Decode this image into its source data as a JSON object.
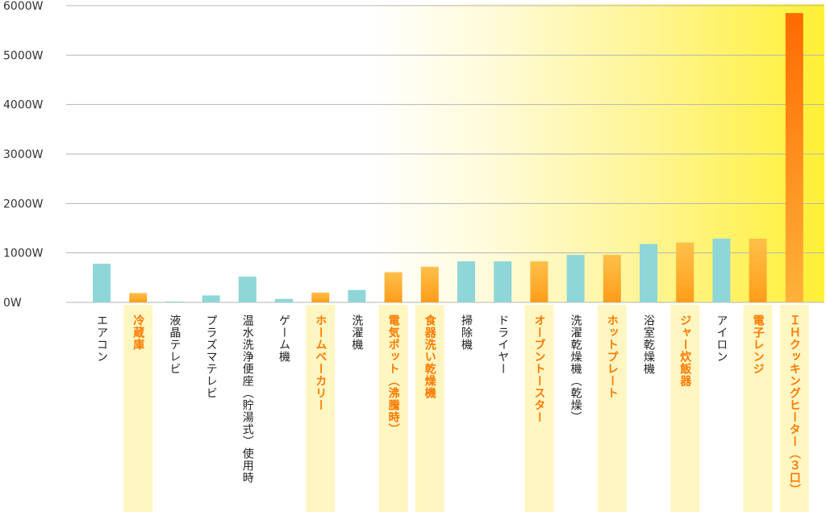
{
  "chart_data": {
    "type": "bar",
    "yunit": "W",
    "ylim": [
      0,
      6000
    ],
    "ytick_labels": [
      "0W",
      "1000W",
      "2000W",
      "3000W",
      "4000W",
      "5000W",
      "6000W"
    ],
    "grid": true,
    "categories": [
      "エアコン",
      "冷蔵庫",
      "液晶テレビ",
      "プラズマテレビ",
      "温水洗浄便座（貯湯式）使用時",
      "ゲーム機",
      "ホームベーカリー",
      "洗濯機",
      "電気ポット（沸騰時）",
      "食器洗い乾燥機",
      "掃除機",
      "ドライヤー",
      "オーブントースター",
      "洗濯乾燥機（乾燥）",
      "ホットプレート",
      "浴室乾燥機",
      "ジャー炊飯器",
      "アイロン",
      "電子レンジ",
      "ＩＨクッキングヒーター（３口）"
    ],
    "values": [
      780,
      190,
      10,
      140,
      520,
      70,
      200,
      250,
      610,
      720,
      830,
      830,
      830,
      960,
      960,
      1180,
      1210,
      1290,
      1290,
      5850
    ],
    "highlighted": [
      false,
      true,
      false,
      false,
      false,
      false,
      true,
      false,
      true,
      true,
      false,
      false,
      true,
      false,
      true,
      false,
      true,
      false,
      true,
      true
    ],
    "colors": {
      "normal_bar": "#8fd6d8",
      "highlight_bar": "#ff9d1a",
      "highlight_bar_top": "#ffc04a",
      "highlight_bar_peak": "#ff6a00",
      "highlight_label": "#ff7a00",
      "normal_label": "#222222",
      "label_band": "#fff6c2",
      "grid": "#b5b5b5",
      "axis_text": "#333333"
    }
  }
}
